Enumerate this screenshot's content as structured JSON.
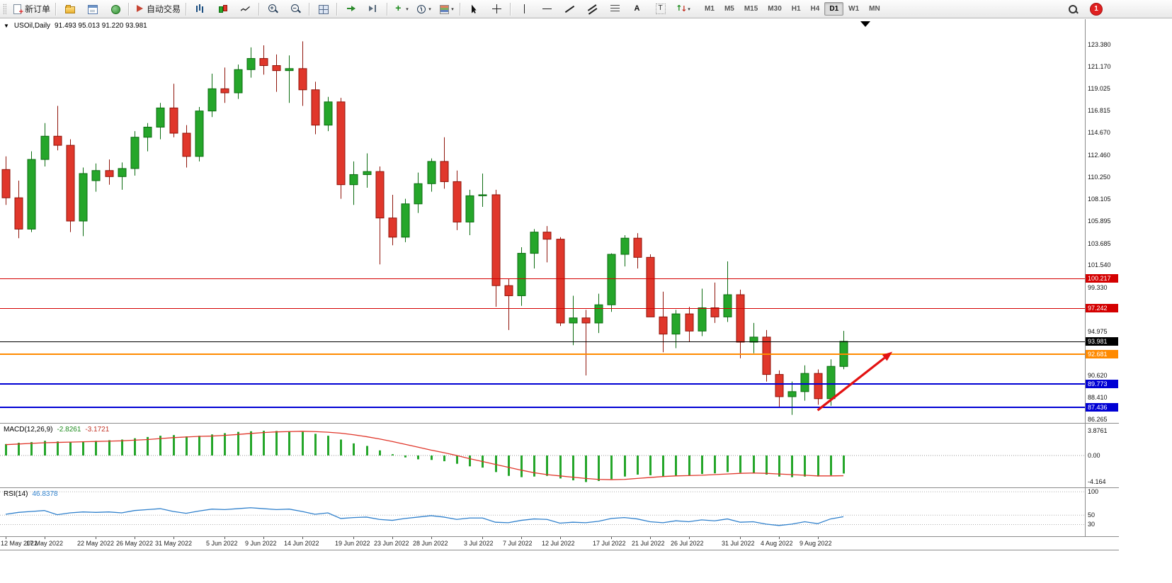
{
  "toolbar": {
    "new_order_label": "新订单",
    "autotrading_label": "自动交易",
    "notification_count": "1",
    "timeframes": [
      "M1",
      "M5",
      "M15",
      "M30",
      "H1",
      "H4",
      "D1",
      "W1",
      "MN"
    ],
    "active_timeframe": "D1",
    "buttons": [
      {
        "name": "new-order",
        "icon": "neworder",
        "label": "新订单"
      },
      {
        "sep": true
      },
      {
        "name": "chart-profiles",
        "icon": "profiles"
      },
      {
        "name": "market-watch",
        "icon": "marketwatch"
      },
      {
        "name": "navigator",
        "icon": "navigator"
      },
      {
        "sep": true
      },
      {
        "name": "autotrading",
        "icon": "autotrade",
        "label": "自动交易"
      },
      {
        "sep": true
      },
      {
        "name": "bar-chart-mode",
        "icon": "bars"
      },
      {
        "name": "candle-chart-mode",
        "icon": "candles"
      },
      {
        "name": "line-chart-mode",
        "icon": "linechart"
      },
      {
        "sep": true
      },
      {
        "name": "zo om-in",
        "icon": "zoomin"
      },
      {
        "name": "zoom-out",
        "icon": "zoomout"
      },
      {
        "sep": true
      },
      {
        "name": "tile-windows",
        "icon": "tiles"
      },
      {
        "sep": true
      },
      {
        "name": "auto-scroll",
        "icon": "autoscroll"
      },
      {
        "name": "chart-shift",
        "icon": "chartshift"
      },
      {
        "sep": true
      },
      {
        "name": "indicators",
        "icon": "indicators",
        "caret": true
      },
      {
        "name": "periods",
        "icon": "clock",
        "caret": true
      },
      {
        "name": "templates",
        "icon": "template",
        "caret": true
      },
      {
        "sep": true
      },
      {
        "name": "cursor-tool",
        "icon": "cursor"
      },
      {
        "name": "crosshair-tool",
        "icon": "crosshair"
      },
      {
        "sep": true
      },
      {
        "name": "vertical-line-tool",
        "icon": "vline"
      },
      {
        "name": "horizontal-line-tool",
        "icon": "hline"
      },
      {
        "name": "trendline-tool",
        "icon": "trend"
      },
      {
        "name": "channel-tool",
        "icon": "channel"
      },
      {
        "name": "fibonacci-tool",
        "icon": "fib"
      },
      {
        "name": "text-tool",
        "icon": "textA"
      },
      {
        "name": "text-label-tool",
        "icon": "textT"
      },
      {
        "name": "arrows-tool",
        "icon": "arrows",
        "caret": true
      }
    ]
  },
  "chart": {
    "title_symbol": "USOil,Daily",
    "title_ohlc": "91.493 95.013 91.220 93.981",
    "price_ticks": [
      "123.380",
      "121.170",
      "119.025",
      "116.815",
      "114.670",
      "112.460",
      "110.250",
      "108.105",
      "105.895",
      "103.685",
      "101.540",
      "99.330",
      "94.975",
      "90.620",
      "88.410",
      "86.265"
    ]
  },
  "chart_data": {
    "type": "candlestick",
    "symbol": "USOil",
    "period": "Daily",
    "current_ohlc": {
      "open": 91.493,
      "high": 95.013,
      "low": 91.22,
      "close": 93.981
    },
    "y_range": [
      85.9,
      125.9
    ],
    "colors": {
      "up": "#25a62a",
      "up_edge": "#0b6c10",
      "down": "#e0372b",
      "down_edge": "#8f1309",
      "macd_hist": "#25a62a",
      "macd_signal": "#e0372b",
      "rsi": "#2f80cc"
    },
    "candles": [
      [
        111.0,
        112.3,
        107.5,
        108.2
      ],
      [
        108.2,
        109.9,
        104.2,
        105.1
      ],
      [
        105.1,
        112.8,
        104.8,
        112.0
      ],
      [
        112.0,
        115.6,
        111.3,
        114.3
      ],
      [
        114.3,
        117.3,
        112.9,
        113.4
      ],
      [
        113.4,
        114.0,
        104.8,
        105.9
      ],
      [
        105.9,
        111.2,
        104.4,
        110.6
      ],
      [
        109.9,
        111.6,
        108.8,
        110.9
      ],
      [
        110.9,
        112.0,
        109.5,
        110.3
      ],
      [
        110.3,
        111.7,
        109.0,
        111.1
      ],
      [
        111.1,
        114.8,
        110.4,
        114.2
      ],
      [
        114.2,
        115.6,
        112.8,
        115.2
      ],
      [
        115.2,
        117.6,
        114.0,
        117.1
      ],
      [
        117.1,
        119.5,
        114.2,
        114.6
      ],
      [
        114.6,
        115.4,
        111.2,
        112.3
      ],
      [
        112.3,
        117.2,
        111.8,
        116.8
      ],
      [
        116.8,
        120.5,
        116.2,
        119.0
      ],
      [
        119.0,
        121.1,
        117.6,
        118.6
      ],
      [
        118.6,
        121.4,
        118.0,
        120.9
      ],
      [
        120.9,
        123.1,
        120.1,
        122.0
      ],
      [
        122.0,
        123.3,
        120.4,
        121.3
      ],
      [
        121.3,
        122.4,
        118.7,
        120.8
      ],
      [
        120.8,
        122.3,
        117.6,
        121.0
      ],
      [
        121.0,
        123.7,
        117.3,
        118.9
      ],
      [
        118.9,
        119.7,
        114.5,
        115.4
      ],
      [
        115.4,
        118.2,
        114.8,
        117.7
      ],
      [
        117.7,
        118.1,
        108.1,
        109.5
      ],
      [
        109.5,
        111.8,
        107.5,
        110.5
      ],
      [
        110.5,
        112.6,
        109.2,
        110.8
      ],
      [
        110.8,
        111.3,
        101.6,
        106.2
      ],
      [
        106.2,
        108.5,
        103.5,
        104.3
      ],
      [
        104.3,
        108.1,
        103.8,
        107.6
      ],
      [
        107.6,
        110.7,
        106.7,
        109.6
      ],
      [
        109.6,
        112.1,
        108.8,
        111.8
      ],
      [
        111.8,
        114.2,
        109.1,
        109.8
      ],
      [
        109.8,
        110.9,
        105.0,
        105.8
      ],
      [
        105.8,
        109.0,
        104.5,
        108.4
      ],
      [
        108.4,
        110.6,
        107.3,
        108.5
      ],
      [
        108.5,
        109.0,
        97.4,
        99.5
      ],
      [
        99.5,
        100.2,
        95.1,
        98.5
      ],
      [
        98.5,
        103.3,
        97.5,
        102.7
      ],
      [
        102.7,
        105.1,
        101.2,
        104.8
      ],
      [
        104.8,
        105.4,
        101.8,
        104.1
      ],
      [
        104.1,
        104.3,
        95.5,
        95.8
      ],
      [
        95.8,
        98.5,
        93.6,
        96.3
      ],
      [
        96.3,
        97.1,
        90.6,
        95.8
      ],
      [
        95.8,
        98.7,
        94.8,
        97.6
      ],
      [
        97.6,
        102.7,
        96.9,
        102.6
      ],
      [
        102.6,
        104.5,
        101.4,
        104.2
      ],
      [
        104.2,
        104.7,
        101.2,
        102.3
      ],
      [
        102.3,
        102.6,
        96.4,
        96.4
      ],
      [
        96.4,
        98.9,
        92.9,
        94.7
      ],
      [
        94.7,
        97.1,
        93.3,
        96.7
      ],
      [
        96.7,
        97.4,
        93.9,
        95.0
      ],
      [
        95.0,
        99.2,
        94.5,
        97.3
      ],
      [
        97.3,
        99.8,
        95.8,
        96.4
      ],
      [
        96.4,
        101.9,
        95.9,
        98.6
      ],
      [
        98.6,
        99.1,
        92.3,
        93.9
      ],
      [
        93.9,
        95.8,
        92.8,
        94.4
      ],
      [
        94.4,
        95.1,
        90.0,
        90.7
      ],
      [
        90.7,
        91.1,
        87.4,
        88.5
      ],
      [
        88.5,
        90.0,
        86.7,
        89.0
      ],
      [
        89.0,
        91.6,
        88.1,
        90.8
      ],
      [
        90.8,
        91.2,
        87.7,
        88.3
      ],
      [
        88.3,
        92.2,
        87.6,
        91.5
      ],
      [
        91.493,
        95.013,
        91.22,
        93.981
      ]
    ],
    "x_labels": [
      {
        "label": "12 May 2022",
        "i": 0
      },
      {
        "label": "17 May 2022",
        "i": 3
      },
      {
        "label": "22 May 2022",
        "i": 7
      },
      {
        "label": "26 May 2022",
        "i": 10
      },
      {
        "label": "31 May 2022",
        "i": 13
      },
      {
        "label": "5 Jun 2022",
        "i": 17
      },
      {
        "label": "9 Jun 2022",
        "i": 20
      },
      {
        "label": "14 Jun 2022",
        "i": 23
      },
      {
        "label": "19 Jun 2022",
        "i": 27
      },
      {
        "label": "23 Jun 2022",
        "i": 30
      },
      {
        "label": "28 Jun 2022",
        "i": 33
      },
      {
        "label": "3 Jul 2022",
        "i": 37
      },
      {
        "label": "7 Jul 2022",
        "i": 40
      },
      {
        "label": "12 Jul 2022",
        "i": 43
      },
      {
        "label": "17 Jul 2022",
        "i": 47
      },
      {
        "label": "21 Jul 2022",
        "i": 50
      },
      {
        "label": "26 Jul 2022",
        "i": 53
      },
      {
        "label": "31 Jul 2022",
        "i": 57
      },
      {
        "label": "4 Aug 2022",
        "i": 60
      },
      {
        "label": "9 Aug 2022",
        "i": 63
      }
    ],
    "horizontal_lines": [
      {
        "value": 100.217,
        "badge": "100.217",
        "color": "#d40000",
        "width": 1
      },
      {
        "value": 97.242,
        "badge": "97.242",
        "color": "#d40000",
        "width": 1
      },
      {
        "value": 93.981,
        "badge": "93.981",
        "color": "#000000",
        "width": 1
      },
      {
        "value": 92.681,
        "badge": "92.681",
        "color": "#ff8a00",
        "width": 2
      },
      {
        "value": 89.773,
        "badge": "89.773",
        "color": "#0000d4",
        "width": 2
      },
      {
        "value": 87.436,
        "badge": "87.436",
        "color": "#0000d4",
        "width": 2
      }
    ],
    "trend_arrow": {
      "x1_bar": 63.0,
      "y1_price": 87.15,
      "x2_bar": 68.8,
      "y2_price": 92.95,
      "color": "#e31212"
    },
    "macd": {
      "name": "MACD(12,26,9)",
      "main_value": "-2.8261",
      "signal_value": "-3.1721",
      "axis_ticks": [
        3.8761,
        0,
        -4.164
      ],
      "axis_tick_labels": [
        "3.8761",
        "0.00",
        "-4.164"
      ],
      "y_range": [
        -5.0,
        5.0
      ],
      "histogram": [
        1.8,
        2.0,
        2.1,
        2.3,
        2.2,
        2.1,
        2.2,
        2.3,
        2.4,
        2.5,
        2.7,
        2.9,
        3.1,
        3.2,
        3.0,
        3.1,
        3.3,
        3.5,
        3.7,
        3.8,
        3.8761,
        3.85,
        3.8,
        3.7,
        3.4,
        3.1,
        2.5,
        1.9,
        1.5,
        0.8,
        0.2,
        -0.3,
        -0.6,
        -0.7,
        -0.9,
        -1.3,
        -1.7,
        -1.9,
        -2.6,
        -3.2,
        -3.4,
        -3.3,
        -3.2,
        -3.6,
        -3.9,
        -4.164,
        -4.0,
        -3.7,
        -3.3,
        -3.0,
        -3.1,
        -3.3,
        -3.2,
        -3.1,
        -2.9,
        -2.8,
        -2.6,
        -2.7,
        -2.8,
        -3.0,
        -3.3,
        -3.4,
        -3.3,
        -3.3,
        -3.1,
        -2.8261
      ],
      "signal": [
        1.7,
        1.8,
        1.9,
        2.0,
        2.05,
        2.1,
        2.15,
        2.2,
        2.25,
        2.3,
        2.4,
        2.5,
        2.65,
        2.8,
        2.9,
        3.0,
        3.05,
        3.15,
        3.3,
        3.45,
        3.6,
        3.7,
        3.75,
        3.8,
        3.75,
        3.65,
        3.5,
        3.25,
        2.95,
        2.6,
        2.2,
        1.75,
        1.3,
        0.85,
        0.45,
        0.0,
        -0.5,
        -0.95,
        -1.4,
        -1.85,
        -2.3,
        -2.7,
        -3.0,
        -3.2,
        -3.4,
        -3.6,
        -3.75,
        -3.8,
        -3.75,
        -3.6,
        -3.45,
        -3.3,
        -3.2,
        -3.15,
        -3.1,
        -3.0,
        -2.9,
        -2.8,
        -2.75,
        -2.8,
        -2.9,
        -3.0,
        -3.1,
        -3.2,
        -3.2,
        -3.1721
      ]
    },
    "rsi": {
      "name": "RSI(14)",
      "value": "46.8378",
      "levels": [
        100,
        50,
        30
      ],
      "y_range": [
        5,
        108
      ],
      "values": [
        52,
        56,
        58,
        60,
        51,
        55,
        57,
        56,
        57,
        55,
        60,
        62,
        64,
        58,
        54,
        59,
        63,
        62,
        64,
        66,
        64,
        62,
        63,
        58,
        52,
        55,
        43,
        45,
        46,
        41,
        39,
        43,
        46,
        49,
        46,
        41,
        44,
        44,
        35,
        34,
        39,
        42,
        41,
        33,
        35,
        34,
        37,
        43,
        45,
        42,
        36,
        34,
        38,
        36,
        40,
        38,
        42,
        35,
        36,
        31,
        28,
        31,
        36,
        32,
        42,
        46.8378
      ]
    }
  }
}
